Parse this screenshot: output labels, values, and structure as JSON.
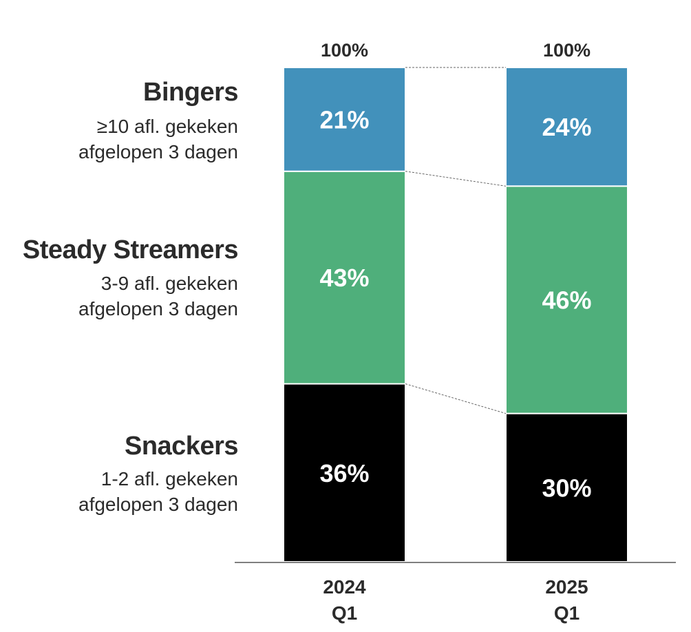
{
  "segments": [
    {
      "title": "Bingers",
      "desc1": "≥10 afl. gekeken",
      "desc2": "afgelopen 3 dagen"
    },
    {
      "title": "Steady Streamers",
      "desc1": "3-9 afl. gekeken",
      "desc2": "afgelopen 3 dagen"
    },
    {
      "title": "Snackers",
      "desc1": "1-2 afl. gekeken",
      "desc2": "afgelopen 3 dagen"
    }
  ],
  "chart_data": {
    "type": "bar",
    "stacked": true,
    "categories": [
      [
        "2024",
        "Q1"
      ],
      [
        "2025",
        "Q1"
      ]
    ],
    "totals": [
      "100%",
      "100%"
    ],
    "series": [
      {
        "name": "Snackers",
        "color": "#000000",
        "values": [
          36,
          30
        ]
      },
      {
        "name": "Steady Streamers",
        "color": "#4faf7b",
        "values": [
          43,
          46
        ]
      },
      {
        "name": "Bingers",
        "color": "#4291bb",
        "values": [
          21,
          24
        ]
      }
    ],
    "ylim": [
      0,
      100
    ],
    "value_suffix": "%",
    "connector_lines": true,
    "grid": false,
    "legend": "left"
  }
}
